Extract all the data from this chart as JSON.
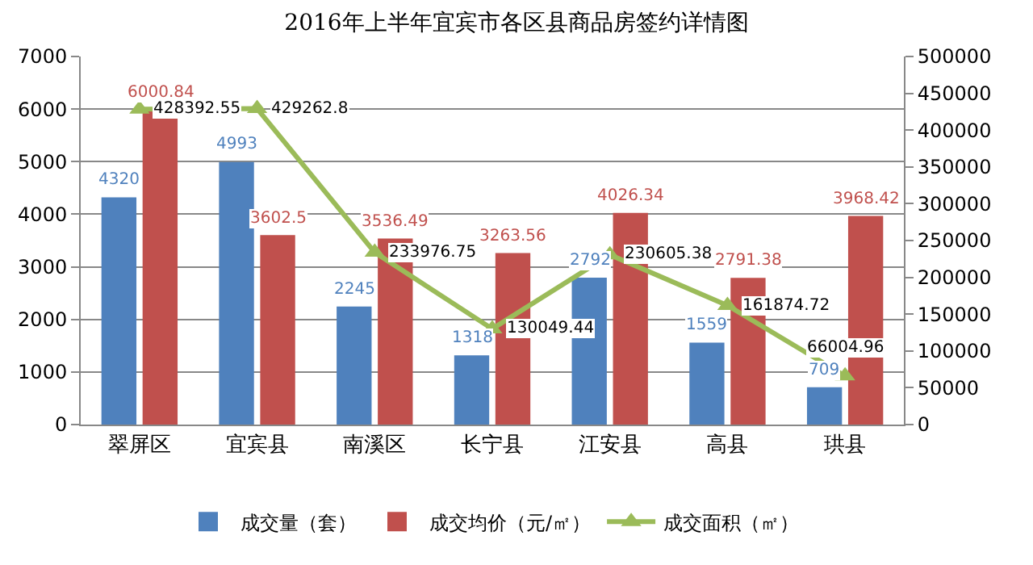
{
  "chart_data": {
    "type": "bar",
    "title": "2016年上半年宜宾市各区县商品房签约详情图",
    "categories": [
      "翠屏区",
      "宜宾县",
      "南溪区",
      "长宁县",
      "江安县",
      "高县",
      "珙县"
    ],
    "series": [
      {
        "name": "成交量（套）",
        "color": "#4f81bd",
        "values": [
          4320,
          4993,
          2245,
          1318,
          2792,
          1559,
          709
        ]
      },
      {
        "name": "成交均价（元/㎡）",
        "color": "#c0504d",
        "values": [
          6000.84,
          3602.5,
          3536.49,
          3263.56,
          4026.34,
          2791.38,
          3968.42
        ]
      },
      {
        "name": "成交面积（㎡）",
        "type": "line",
        "axis": "y2",
        "color": "#9bbb59",
        "values": [
          428392.55,
          429262.8,
          233976.75,
          130049.44,
          230605.38,
          161874.72,
          66004.96
        ]
      }
    ],
    "ylim": [
      0,
      7000
    ],
    "yticks": [
      0,
      1000,
      2000,
      3000,
      4000,
      5000,
      6000,
      7000
    ],
    "y2lim": [
      0,
      500000
    ],
    "y2ticks": [
      0,
      50000,
      100000,
      150000,
      200000,
      250000,
      300000,
      350000,
      400000,
      450000,
      500000
    ],
    "data_labels": true,
    "grid": "y",
    "legend": "bottom",
    "marker": "triangle"
  }
}
